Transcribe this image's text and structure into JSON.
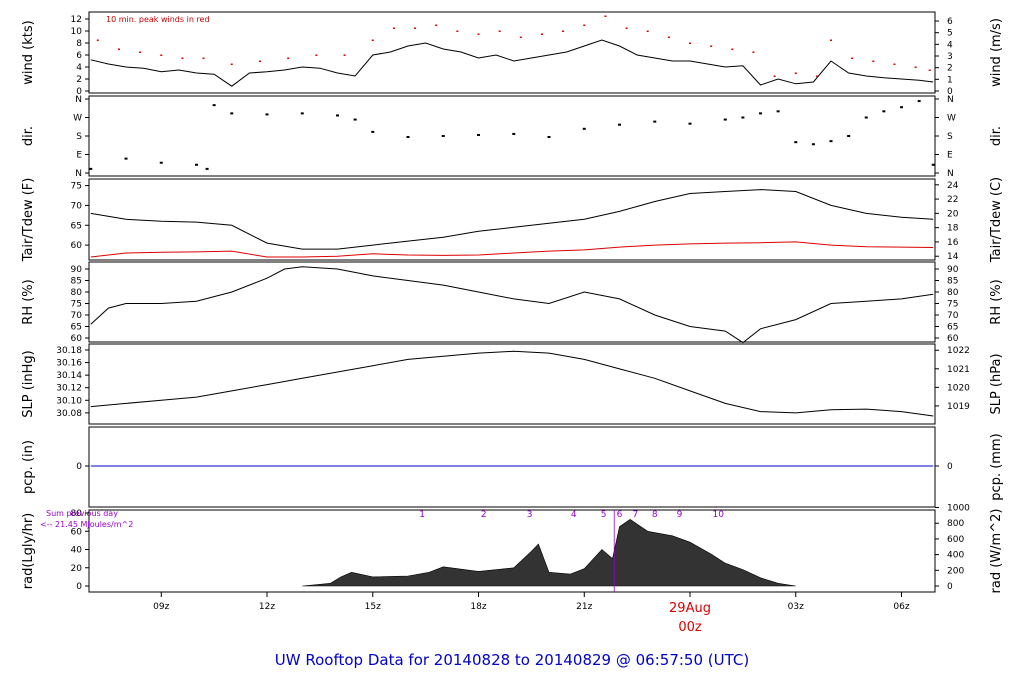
{
  "title": "UW Rooftop Data for 20140828  to  20140829 @ 06:57:50  (UTC)",
  "x_axis": {
    "tick_labels": [
      "09z",
      "12z",
      "15z",
      "18z",
      "21z",
      "03z",
      "06z"
    ],
    "tick_positions_hours": [
      9,
      12,
      15,
      18,
      21,
      27,
      30
    ],
    "date_label": "29Aug",
    "date_sub_label": "00z",
    "date_position_hours": 24,
    "range_hours": [
      6.95,
      30.95
    ]
  },
  "panels": [
    {
      "id": "wind",
      "left_label": "wind (kts)",
      "right_label": "wind (m/s)",
      "left_ticks": [
        "0",
        "2",
        "4",
        "6",
        "8",
        "10",
        "12"
      ],
      "right_ticks": [
        "0",
        "1",
        "2",
        "3",
        "4",
        "5",
        "6"
      ],
      "note": "10 min. peak winds in red"
    },
    {
      "id": "dir",
      "left_label": "dir.",
      "right_label": "dir.",
      "left_ticks": [
        "N",
        "E",
        "S",
        "W",
        "N"
      ],
      "right_ticks": [
        "N",
        "E",
        "S",
        "W",
        "N"
      ]
    },
    {
      "id": "temp",
      "left_label": "Tair/Tdew (F)",
      "right_label": "Tair/Tdew (C)",
      "left_ticks": [
        "60",
        "65",
        "70",
        "75"
      ],
      "right_ticks": [
        "14",
        "16",
        "18",
        "20",
        "22",
        "24"
      ]
    },
    {
      "id": "rh",
      "left_label": "RH (%)",
      "right_label": "RH (%)",
      "left_ticks": [
        "60",
        "65",
        "70",
        "75",
        "80",
        "85",
        "90"
      ],
      "right_ticks": [
        "60",
        "65",
        "70",
        "75",
        "80",
        "85",
        "90"
      ]
    },
    {
      "id": "slp",
      "left_label": "SLP (inHg)",
      "right_label": "SLP (hPa)",
      "left_ticks": [
        "30.08",
        "30.10",
        "30.12",
        "30.14",
        "30.16",
        "30.18"
      ],
      "right_ticks": [
        "1019",
        "1020",
        "1021",
        "1022"
      ]
    },
    {
      "id": "pcp",
      "left_label": "pcp. (in)",
      "right_label": "pcp. (mm)",
      "left_ticks": [
        "0"
      ],
      "right_ticks": [
        "0"
      ]
    },
    {
      "id": "rad",
      "left_label": "rad(Lgly/hr)",
      "right_label": "rad (W/m^2)",
      "left_ticks": [
        "0",
        "20",
        "40",
        "60",
        "80"
      ],
      "right_ticks": [
        "0",
        "200",
        "400",
        "600",
        "800",
        "1000"
      ],
      "note_line1": "Sum previous day",
      "note_line2": "<-- 21.45 MJoules/m^2",
      "hour_markers": [
        "1",
        "2",
        "3",
        "4",
        "5",
        "6",
        "7",
        "8",
        "9",
        "10"
      ],
      "hour_marker_positions_hours": [
        16.4,
        18.15,
        19.45,
        20.7,
        21.55,
        22.0,
        22.45,
        23.0,
        23.7,
        24.8
      ]
    }
  ],
  "chart_data": {
    "type": "line",
    "x_unit": "hours UTC from 2014-08-28 00z",
    "wind_kts": {
      "x": [
        7.0,
        7.5,
        8.0,
        8.5,
        9.0,
        9.5,
        10.0,
        10.5,
        11.0,
        11.5,
        12.0,
        12.5,
        13.0,
        13.5,
        14.0,
        14.5,
        15.0,
        15.5,
        16.0,
        16.5,
        17.0,
        17.5,
        18.0,
        18.5,
        19.0,
        19.5,
        20.0,
        20.5,
        21.0,
        21.5,
        22.0,
        22.5,
        23.0,
        23.5,
        24.0,
        24.5,
        25.0,
        25.5,
        26.0,
        26.5,
        27.0,
        27.5,
        28.0,
        28.5,
        29.0,
        29.5,
        30.0,
        30.5,
        30.9
      ],
      "y": [
        5.2,
        4.5,
        4.0,
        3.8,
        3.2,
        3.5,
        3.0,
        2.8,
        0.8,
        3.0,
        3.2,
        3.5,
        4.0,
        3.8,
        3.0,
        2.5,
        6.0,
        6.5,
        7.5,
        8.0,
        7.0,
        6.5,
        5.5,
        6.0,
        5.0,
        5.5,
        6.0,
        6.5,
        7.5,
        8.5,
        7.5,
        6.0,
        5.5,
        5.0,
        5.0,
        4.5,
        4.0,
        4.2,
        1.0,
        2.0,
        1.2,
        1.5,
        5.0,
        3.0,
        2.5,
        2.2,
        2.0,
        1.8,
        1.5
      ]
    },
    "peak_wind_kts": {
      "x": [
        7.2,
        7.8,
        8.4,
        9.0,
        9.6,
        10.2,
        11.0,
        11.8,
        12.6,
        13.4,
        14.2,
        15.0,
        15.6,
        16.2,
        16.8,
        17.4,
        18.0,
        18.6,
        19.2,
        19.8,
        20.4,
        21.0,
        21.6,
        22.2,
        22.8,
        23.4,
        24.0,
        24.6,
        25.2,
        25.8,
        26.4,
        27.0,
        27.6,
        28.0,
        28.6,
        29.2,
        29.8,
        30.4,
        30.8
      ],
      "y": [
        8.5,
        7.0,
        6.5,
        6.0,
        5.5,
        5.5,
        4.5,
        5.0,
        5.5,
        6.0,
        6.0,
        8.5,
        10.5,
        10.5,
        11.0,
        10.0,
        9.5,
        10.0,
        9.0,
        9.5,
        10.0,
        11.0,
        12.5,
        10.5,
        10.0,
        9.0,
        8.0,
        7.5,
        7.0,
        6.5,
        2.5,
        3.0,
        2.5,
        8.5,
        5.5,
        5.0,
        4.5,
        4.0,
        3.5
      ]
    },
    "direction_deg": {
      "x": [
        7.0,
        8.0,
        9.0,
        10.0,
        10.3,
        10.5,
        11.0,
        12.0,
        13.0,
        14.0,
        14.5,
        15.0,
        16.0,
        17.0,
        18.0,
        19.0,
        20.0,
        21.0,
        22.0,
        23.0,
        24.0,
        25.0,
        25.5,
        26.0,
        26.5,
        27.0,
        27.5,
        28.0,
        28.5,
        29.0,
        29.5,
        30.0,
        30.5,
        30.9
      ],
      "y": [
        20,
        70,
        50,
        40,
        20,
        330,
        290,
        285,
        290,
        280,
        260,
        200,
        175,
        180,
        185,
        190,
        175,
        215,
        235,
        250,
        240,
        260,
        270,
        290,
        300,
        150,
        140,
        155,
        180,
        270,
        300,
        320,
        350,
        40
      ]
    },
    "tair_f": {
      "x": [
        7.0,
        8.0,
        9.0,
        10.0,
        11.0,
        12.0,
        13.0,
        14.0,
        15.0,
        16.0,
        17.0,
        18.0,
        19.0,
        20.0,
        21.0,
        22.0,
        23.0,
        24.0,
        25.0,
        26.0,
        27.0,
        28.0,
        29.0,
        30.0,
        30.9
      ],
      "y": [
        68.0,
        66.5,
        66.0,
        65.8,
        65.0,
        60.5,
        59.0,
        59.0,
        60.0,
        61.0,
        62.0,
        63.5,
        64.5,
        65.5,
        66.5,
        68.5,
        71.0,
        73.0,
        73.5,
        74.0,
        73.5,
        70.0,
        68.0,
        67.0,
        66.5
      ]
    },
    "tdew_f": {
      "x": [
        7.0,
        8.0,
        9.0,
        10.0,
        11.0,
        12.0,
        13.0,
        14.0,
        15.0,
        16.0,
        17.0,
        18.0,
        19.0,
        20.0,
        21.0,
        22.0,
        23.0,
        24.0,
        25.0,
        26.0,
        27.0,
        28.0,
        29.0,
        30.0,
        30.9
      ],
      "y": [
        57.0,
        58.0,
        58.2,
        58.3,
        58.5,
        57.0,
        57.0,
        57.2,
        57.8,
        57.5,
        57.4,
        57.5,
        58.0,
        58.5,
        58.8,
        59.5,
        60.0,
        60.3,
        60.5,
        60.6,
        60.8,
        60.0,
        59.6,
        59.5,
        59.4
      ]
    },
    "rh_pct": {
      "x": [
        7.0,
        7.5,
        8.0,
        9.0,
        10.0,
        11.0,
        12.0,
        12.5,
        13.0,
        14.0,
        15.0,
        16.0,
        17.0,
        18.0,
        19.0,
        20.0,
        21.0,
        22.0,
        23.0,
        24.0,
        25.0,
        25.5,
        26.0,
        27.0,
        28.0,
        29.0,
        30.0,
        30.9
      ],
      "y": [
        66,
        73,
        75,
        75,
        76,
        80,
        86,
        90,
        91,
        90,
        87,
        85,
        83,
        80,
        77,
        75,
        80,
        77,
        70,
        65,
        63,
        58,
        64,
        68,
        75,
        76,
        77,
        79
      ]
    },
    "slp_inhg": {
      "x": [
        7.0,
        8.0,
        9.0,
        10.0,
        11.0,
        12.0,
        13.0,
        14.0,
        15.0,
        16.0,
        17.0,
        18.0,
        19.0,
        20.0,
        21.0,
        22.0,
        23.0,
        24.0,
        25.0,
        26.0,
        27.0,
        28.0,
        29.0,
        30.0,
        30.9
      ],
      "y": [
        30.09,
        30.095,
        30.1,
        30.105,
        30.115,
        30.125,
        30.135,
        30.145,
        30.155,
        30.165,
        30.17,
        30.175,
        30.178,
        30.175,
        30.165,
        30.15,
        30.135,
        30.115,
        30.095,
        30.082,
        30.08,
        30.085,
        30.086,
        30.082,
        30.075
      ]
    },
    "pcp_in": {
      "x": [
        7.0,
        30.9
      ],
      "y": [
        0,
        0
      ]
    },
    "rad_lgly_hr": {
      "x": [
        13.0,
        13.8,
        14.1,
        14.4,
        15.0,
        16.0,
        16.6,
        17.0,
        18.0,
        19.0,
        19.5,
        19.7,
        20.0,
        20.6,
        21.0,
        21.5,
        21.8,
        22.0,
        22.3,
        22.8,
        23.5,
        24.0,
        24.6,
        25.0,
        25.5,
        26.0,
        26.5,
        27.0
      ],
      "y": [
        0,
        3,
        10,
        15,
        10,
        11,
        15,
        21,
        16,
        20,
        38,
        46,
        15,
        13,
        19,
        40,
        30,
        65,
        73,
        60,
        55,
        48,
        35,
        25,
        18,
        9,
        3,
        0
      ]
    }
  }
}
